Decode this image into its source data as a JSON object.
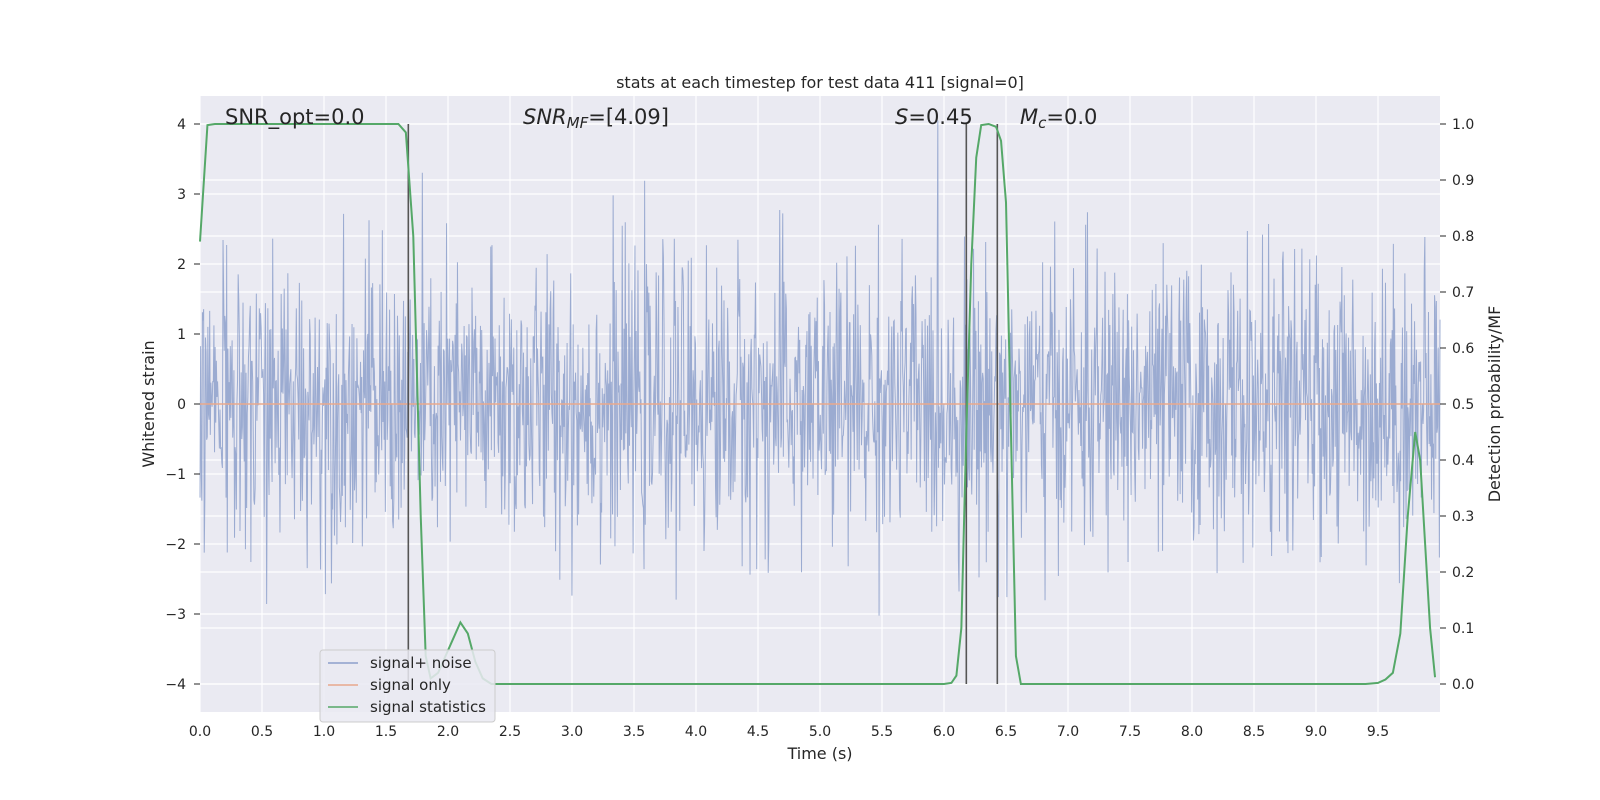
{
  "chart_data": {
    "type": "line",
    "title": "stats at each timestep for test data 411 [signal=0]",
    "xlabel": "Time (s)",
    "ylabel": "Whitened strain",
    "y2label": "Detection probability/MF",
    "xlim": [
      0.0,
      10.0
    ],
    "ylim": [
      -4.4,
      4.4
    ],
    "y2lim": [
      -0.05,
      1.05
    ],
    "xticks": [
      "0.0",
      "0.5",
      "1.0",
      "1.5",
      "2.0",
      "2.5",
      "3.0",
      "3.5",
      "4.0",
      "4.5",
      "5.0",
      "5.5",
      "6.0",
      "6.5",
      "7.0",
      "7.5",
      "8.0",
      "8.5",
      "9.0",
      "9.5"
    ],
    "yticks": [
      "−4",
      "−3",
      "−2",
      "−1",
      "0",
      "1",
      "2",
      "3",
      "4"
    ],
    "y2ticks": [
      "0.0",
      "0.1",
      "0.2",
      "0.3",
      "0.4",
      "0.5",
      "0.6",
      "0.7",
      "0.8",
      "0.9",
      "1.0"
    ],
    "grid": true,
    "annotations": {
      "snr_opt": "SNR_opt=0.0",
      "snr_mf_sym": "SNR",
      "snr_mf_sub": "MF",
      "snr_mf_val": "=[4.09]",
      "s_sym": "S",
      "s_val": "=0.45",
      "mc_sym": "M",
      "mc_sub": "c",
      "mc_val": "=0.0"
    },
    "vlines_x": [
      1.68,
      6.18,
      6.43
    ],
    "series": [
      {
        "name": "signal+ noise",
        "color": "#8da0cb",
        "axis": "left",
        "noise_std": 1.0,
        "duration": 10.0
      },
      {
        "name": "signal only",
        "color": "#e8a88c",
        "axis": "left",
        "x": [
          0.0,
          10.0
        ],
        "y": [
          0.0,
          0.0
        ]
      },
      {
        "name": "signal statistics",
        "color": "#55a868",
        "axis": "right",
        "x": [
          0.0,
          0.06,
          0.12,
          0.2,
          0.5,
          1.0,
          1.5,
          1.6,
          1.66,
          1.72,
          1.78,
          1.82,
          1.86,
          1.92,
          1.98,
          2.04,
          2.1,
          2.16,
          2.22,
          2.28,
          2.35,
          2.5,
          3.0,
          4.0,
          5.0,
          5.5,
          6.0,
          6.06,
          6.1,
          6.14,
          6.18,
          6.22,
          6.26,
          6.3,
          6.36,
          6.42,
          6.46,
          6.5,
          6.54,
          6.58,
          6.62,
          6.7,
          7.0,
          8.0,
          9.0,
          9.4,
          9.5,
          9.56,
          9.62,
          9.68,
          9.74,
          9.8,
          9.84,
          9.88,
          9.92,
          9.96
        ],
        "y": [
          0.79,
          0.998,
          1.0,
          1.0,
          1.0,
          1.0,
          1.0,
          1.0,
          0.985,
          0.8,
          0.3,
          0.05,
          0.01,
          0.02,
          0.05,
          0.08,
          0.11,
          0.09,
          0.04,
          0.01,
          0.0,
          0.0,
          0.0,
          0.0,
          0.0,
          0.0,
          0.0,
          0.002,
          0.015,
          0.1,
          0.45,
          0.75,
          0.94,
          0.998,
          1.0,
          0.995,
          0.97,
          0.86,
          0.45,
          0.05,
          0.0,
          0.0,
          0.0,
          0.0,
          0.0,
          0.0,
          0.002,
          0.008,
          0.02,
          0.09,
          0.3,
          0.45,
          0.4,
          0.25,
          0.1,
          0.012
        ]
      }
    ],
    "legend_position": "lower-left"
  }
}
